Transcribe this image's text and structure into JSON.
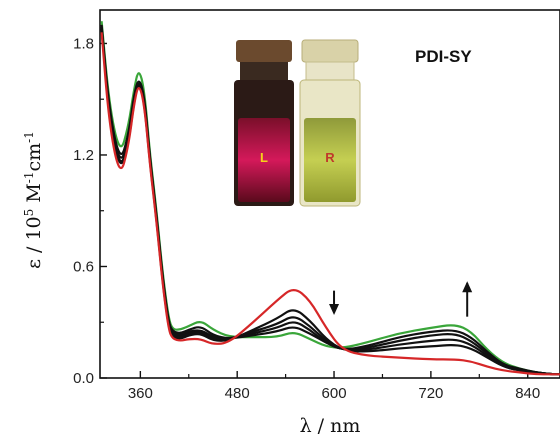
{
  "chart_data": {
    "type": "line",
    "compound_label": "PDI-SY",
    "xlabel": {
      "symbol": "λ",
      "separator": " / ",
      "unit": "nm"
    },
    "ylabel": {
      "symbol": "ε",
      "separator": " / ",
      "base": "10",
      "exp": "5",
      "unit1": " M",
      "exp1": "-1",
      "unit2": "cm",
      "exp2": "-1"
    },
    "xlim": [
      310,
      880
    ],
    "ylim": [
      0.0,
      1.98
    ],
    "x_ticks": [
      360,
      480,
      600,
      720,
      840
    ],
    "y_ticks": [
      0.0,
      0.6,
      1.2,
      1.8
    ],
    "y_tick_labels": [
      "0.0",
      "0.6",
      "1.2",
      "1.8"
    ],
    "inset_vials": [
      {
        "letter": "L",
        "liquid_color": "#c8104e",
        "letter_color": "#f5d21a"
      },
      {
        "letter": "R",
        "liquid_color": "#b4c23a",
        "letter_color": "#c0392b"
      }
    ],
    "arrows": [
      {
        "x": 600,
        "y_from": 0.47,
        "y_to": 0.35,
        "direction": "down"
      },
      {
        "x": 765,
        "y_from": 0.33,
        "y_to": 0.51,
        "direction": "up"
      }
    ],
    "series": [
      {
        "color": "#3aa63a",
        "x": [
          312,
          322,
          335,
          345,
          352,
          358,
          365,
          372,
          380,
          388,
          395,
          400,
          410,
          420,
          435,
          450,
          470,
          500,
          530,
          550,
          570,
          590,
          610,
          640,
          680,
          720,
          750,
          770,
          790,
          810,
          830,
          850,
          870,
          880
        ],
        "y": [
          1.92,
          1.45,
          1.2,
          1.35,
          1.55,
          1.67,
          1.55,
          1.2,
          0.9,
          0.55,
          0.32,
          0.26,
          0.26,
          0.28,
          0.31,
          0.26,
          0.22,
          0.22,
          0.22,
          0.25,
          0.21,
          0.17,
          0.16,
          0.19,
          0.24,
          0.27,
          0.29,
          0.25,
          0.15,
          0.08,
          0.05,
          0.03,
          0.02,
          0.02
        ]
      },
      {
        "color": "#111111",
        "x": [
          312,
          322,
          335,
          345,
          352,
          358,
          365,
          372,
          380,
          388,
          395,
          400,
          410,
          420,
          435,
          450,
          470,
          500,
          530,
          550,
          570,
          590,
          610,
          640,
          680,
          720,
          750,
          770,
          790,
          810,
          830,
          850,
          870,
          880
        ],
        "y": [
          1.9,
          1.42,
          1.16,
          1.3,
          1.52,
          1.62,
          1.52,
          1.18,
          0.88,
          0.53,
          0.3,
          0.25,
          0.24,
          0.26,
          0.28,
          0.23,
          0.21,
          0.23,
          0.25,
          0.28,
          0.24,
          0.19,
          0.15,
          0.17,
          0.22,
          0.25,
          0.26,
          0.22,
          0.14,
          0.07,
          0.05,
          0.03,
          0.02,
          0.02
        ]
      },
      {
        "color": "#111111",
        "x": [
          312,
          322,
          335,
          345,
          352,
          358,
          365,
          372,
          380,
          388,
          395,
          400,
          410,
          420,
          435,
          450,
          470,
          500,
          530,
          550,
          570,
          590,
          610,
          640,
          680,
          720,
          750,
          770,
          790,
          810,
          830,
          850,
          870,
          880
        ],
        "y": [
          1.89,
          1.4,
          1.14,
          1.28,
          1.5,
          1.61,
          1.5,
          1.17,
          0.87,
          0.52,
          0.29,
          0.24,
          0.23,
          0.25,
          0.26,
          0.22,
          0.21,
          0.24,
          0.27,
          0.31,
          0.26,
          0.19,
          0.15,
          0.16,
          0.2,
          0.23,
          0.24,
          0.2,
          0.13,
          0.07,
          0.04,
          0.03,
          0.02,
          0.02
        ]
      },
      {
        "color": "#111111",
        "x": [
          312,
          322,
          335,
          345,
          352,
          358,
          365,
          372,
          380,
          388,
          395,
          400,
          410,
          420,
          435,
          450,
          470,
          500,
          530,
          550,
          570,
          590,
          610,
          640,
          680,
          720,
          750,
          770,
          790,
          810,
          830,
          850,
          870,
          880
        ],
        "y": [
          1.88,
          1.39,
          1.12,
          1.26,
          1.49,
          1.6,
          1.49,
          1.16,
          0.86,
          0.51,
          0.28,
          0.23,
          0.22,
          0.24,
          0.25,
          0.21,
          0.21,
          0.25,
          0.29,
          0.34,
          0.28,
          0.2,
          0.15,
          0.15,
          0.18,
          0.2,
          0.21,
          0.18,
          0.12,
          0.06,
          0.04,
          0.03,
          0.02,
          0.02
        ]
      },
      {
        "color": "#111111",
        "x": [
          312,
          322,
          335,
          345,
          352,
          358,
          365,
          372,
          380,
          388,
          395,
          400,
          410,
          420,
          435,
          450,
          470,
          500,
          530,
          550,
          570,
          590,
          610,
          640,
          680,
          720,
          750,
          770,
          790,
          810,
          830,
          850,
          870,
          880
        ],
        "y": [
          1.88,
          1.38,
          1.11,
          1.25,
          1.48,
          1.6,
          1.48,
          1.15,
          0.85,
          0.5,
          0.27,
          0.22,
          0.21,
          0.23,
          0.24,
          0.2,
          0.2,
          0.26,
          0.32,
          0.38,
          0.31,
          0.21,
          0.15,
          0.14,
          0.16,
          0.17,
          0.18,
          0.16,
          0.11,
          0.06,
          0.04,
          0.03,
          0.02,
          0.02
        ]
      },
      {
        "color": "#d62728",
        "x": [
          312,
          322,
          335,
          345,
          352,
          358,
          365,
          372,
          380,
          388,
          395,
          400,
          410,
          420,
          435,
          450,
          470,
          500,
          530,
          550,
          570,
          590,
          610,
          640,
          680,
          720,
          750,
          770,
          790,
          810,
          830,
          850,
          870,
          880
        ],
        "y": [
          1.86,
          1.34,
          1.08,
          1.24,
          1.47,
          1.59,
          1.47,
          1.14,
          0.84,
          0.49,
          0.26,
          0.21,
          0.2,
          0.21,
          0.21,
          0.18,
          0.19,
          0.3,
          0.42,
          0.49,
          0.42,
          0.27,
          0.15,
          0.12,
          0.11,
          0.1,
          0.1,
          0.09,
          0.06,
          0.04,
          0.03,
          0.02,
          0.02,
          0.02
        ]
      }
    ]
  }
}
